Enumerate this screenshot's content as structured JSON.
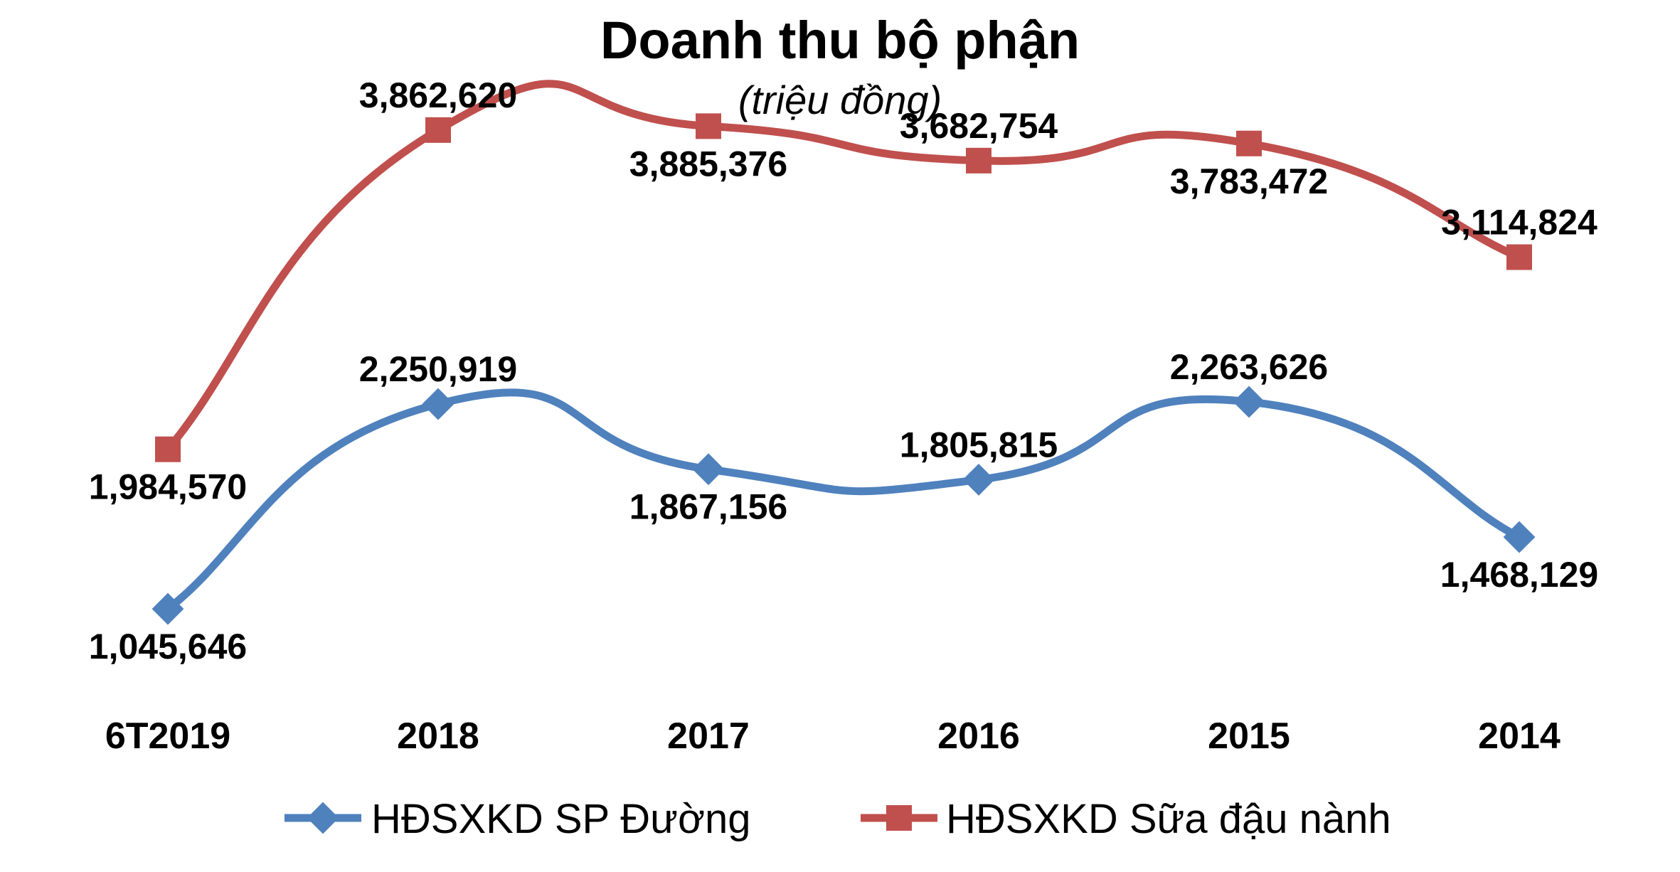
{
  "chart_data": {
    "type": "line",
    "title": "Doanh thu bộ phận",
    "subtitle": "(triệu đồng)",
    "categories": [
      "6T2019",
      "2018",
      "2017",
      "2016",
      "2015",
      "2014"
    ],
    "series": [
      {
        "name": "HĐSXKD SP Đường",
        "color": "#4F81BD",
        "marker": "diamond",
        "values": [
          1045646,
          2250919,
          1867156,
          1805815,
          2263626,
          1468129
        ],
        "labels": [
          "1,045,646",
          "2,250,919",
          "1,867,156",
          "1,805,815",
          "2,263,626",
          "1,468,129"
        ],
        "label_positions": [
          "below",
          "above",
          "below",
          "above",
          "above",
          "below"
        ]
      },
      {
        "name": "HĐSXKD Sữa đậu nành",
        "color": "#C0504D",
        "marker": "square",
        "values": [
          1984570,
          3862620,
          3885376,
          3682754,
          3783472,
          3114824
        ],
        "labels": [
          "1,984,570",
          "3,862,620",
          "3,885,376",
          "3,682,754",
          "3,783,472",
          "3,114,824"
        ],
        "label_positions": [
          "below",
          "above",
          "below",
          "above",
          "below",
          "above"
        ]
      }
    ],
    "smooth": true,
    "grid": false,
    "y_axis_visible": false,
    "legend": "bottom"
  }
}
